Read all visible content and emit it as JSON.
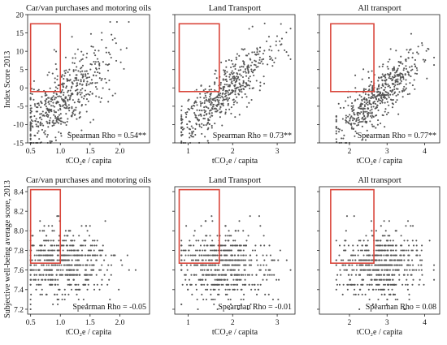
{
  "figure": {
    "ylabel_top": "Index Score 2013",
    "ylabel_bottom": "Subjective well-being average score, 2013"
  },
  "colors": {
    "points": "#555555",
    "highlight": "#d9453a",
    "axes": "#222222"
  },
  "chart_data": [
    {
      "type": "scatter",
      "title": "Car/van purchases and motoring oils",
      "xlabel": "tCO₂e / capita",
      "ylabel": "Index Score 2013",
      "xlim": [
        0.45,
        2.5
      ],
      "ylim": [
        -15,
        20
      ],
      "xticks": [
        0.5,
        1.0,
        1.5,
        2.0
      ],
      "xtick_labels": [
        "0.5",
        "1.0",
        "1.5",
        "2.0"
      ],
      "yticks": [
        -15,
        -10,
        -5,
        0,
        5,
        10,
        15,
        20
      ],
      "ytick_labels": [
        "-15",
        "-10",
        "-5",
        "0",
        "5",
        "10",
        "15",
        "20"
      ],
      "annotation": "Spearman Rho = 0.54**",
      "highlight_box": {
        "x": [
          0.5,
          1.0
        ],
        "y": [
          -1,
          17.5
        ]
      },
      "cloud": {
        "seed": 11,
        "n": 520,
        "x_center": 1.05,
        "x_sd": 0.38,
        "x_min": 0.5,
        "x_max": 2.4,
        "intercept": -16,
        "slope": 12.5,
        "noise": 4.8,
        "y_min": -15,
        "y_max": 18
      }
    },
    {
      "type": "scatter",
      "title": "Land Transport",
      "xlabel": "tCO₂e / capita",
      "ylabel": "",
      "xlim": [
        0.7,
        3.4
      ],
      "ylim": [
        -15,
        20
      ],
      "xticks": [
        1,
        2,
        3
      ],
      "xtick_labels": [
        "1",
        "2",
        "3"
      ],
      "yticks": [
        -15,
        -10,
        -5,
        0,
        5,
        10,
        15,
        20
      ],
      "ytick_labels": [],
      "annotation": "Spearman Rho = 0.73**",
      "highlight_box": {
        "x": [
          0.8,
          1.7
        ],
        "y": [
          -1,
          17.5
        ]
      },
      "cloud": {
        "seed": 23,
        "n": 520,
        "x_center": 1.75,
        "x_sd": 0.55,
        "x_min": 0.85,
        "x_max": 3.3,
        "intercept": -20,
        "slope": 10.2,
        "noise": 3.6,
        "y_min": -15,
        "y_max": 18
      }
    },
    {
      "type": "scatter",
      "title": "All transport",
      "xlabel": "tCO₂e / capita",
      "ylabel": "",
      "xlim": [
        1.2,
        4.4
      ],
      "ylim": [
        -15,
        20
      ],
      "xticks": [
        2,
        3,
        4
      ],
      "xtick_labels": [
        "2",
        "3",
        "4"
      ],
      "yticks": [
        -15,
        -10,
        -5,
        0,
        5,
        10,
        15,
        20
      ],
      "ytick_labels": [],
      "annotation": "Spearman Rho = 0.77**",
      "highlight_box": {
        "x": [
          1.5,
          2.65
        ],
        "y": [
          -1,
          17.5
        ]
      },
      "cloud": {
        "seed": 37,
        "n": 520,
        "x_center": 2.8,
        "x_sd": 0.55,
        "x_min": 1.65,
        "x_max": 4.25,
        "intercept": -25,
        "slope": 8.3,
        "noise": 3.4,
        "y_min": -15,
        "y_max": 18
      }
    },
    {
      "type": "scatter",
      "title": "Car/van purchases and motoring oils",
      "xlabel": "tCO₂e / capita",
      "ylabel": "Subjective well-being average score, 2013",
      "xlim": [
        0.45,
        2.5
      ],
      "ylim": [
        7.15,
        8.45
      ],
      "xticks": [
        0.5,
        1.0,
        1.5,
        2.0
      ],
      "xtick_labels": [
        "0.5",
        "1.0",
        "1.5",
        "2.0"
      ],
      "yticks": [
        7.2,
        7.4,
        7.6,
        7.8,
        8.0,
        8.2,
        8.4
      ],
      "ytick_labels": [
        "7.2",
        "7.4",
        "7.6",
        "7.8",
        "8.0",
        "8.2",
        "8.4"
      ],
      "annotation": "Spearman Rho = -0.05",
      "highlight_box": {
        "x": [
          0.5,
          1.0
        ],
        "y": [
          7.67,
          8.42
        ]
      },
      "cloud": {
        "seed": 51,
        "n": 560,
        "x_center": 1.05,
        "x_sd": 0.38,
        "x_min": 0.5,
        "x_max": 2.4,
        "intercept": 7.67,
        "slope": -0.015,
        "noise": 0.17,
        "y_min": 7.2,
        "y_max": 8.16,
        "y_step": 0.05
      }
    },
    {
      "type": "scatter",
      "title": "Land Transport",
      "xlabel": "tCO₂e / capita",
      "ylabel": "",
      "xlim": [
        0.7,
        3.4
      ],
      "ylim": [
        7.15,
        8.45
      ],
      "xticks": [
        1,
        2,
        3
      ],
      "xtick_labels": [
        "1",
        "2",
        "3"
      ],
      "yticks": [
        7.2,
        7.4,
        7.6,
        7.8,
        8.0,
        8.2,
        8.4
      ],
      "ytick_labels": [],
      "annotation": "Spearman Rho = -0.01",
      "highlight_box": {
        "x": [
          0.8,
          1.7
        ],
        "y": [
          7.67,
          8.42
        ]
      },
      "cloud": {
        "seed": 67,
        "n": 560,
        "x_center": 1.75,
        "x_sd": 0.55,
        "x_min": 0.85,
        "x_max": 3.3,
        "intercept": 7.66,
        "slope": -0.004,
        "noise": 0.17,
        "y_min": 7.2,
        "y_max": 8.16,
        "y_step": 0.05
      }
    },
    {
      "type": "scatter",
      "title": "All transport",
      "xlabel": "tCO₂e / capita",
      "ylabel": "",
      "xlim": [
        1.2,
        4.4
      ],
      "ylim": [
        7.15,
        8.45
      ],
      "xticks": [
        2,
        3,
        4
      ],
      "xtick_labels": [
        "2",
        "3",
        "4"
      ],
      "yticks": [
        7.2,
        7.4,
        7.6,
        7.8,
        8.0,
        8.2,
        8.4
      ],
      "ytick_labels": [],
      "annotation": "Spearman Rho = 0.08",
      "highlight_box": {
        "x": [
          1.5,
          2.65
        ],
        "y": [
          7.67,
          8.42
        ]
      },
      "cloud": {
        "seed": 79,
        "n": 560,
        "x_center": 2.8,
        "x_sd": 0.55,
        "x_min": 1.65,
        "x_max": 4.25,
        "intercept": 7.6,
        "slope": 0.02,
        "noise": 0.17,
        "y_min": 7.2,
        "y_max": 8.16,
        "y_step": 0.05
      }
    }
  ]
}
